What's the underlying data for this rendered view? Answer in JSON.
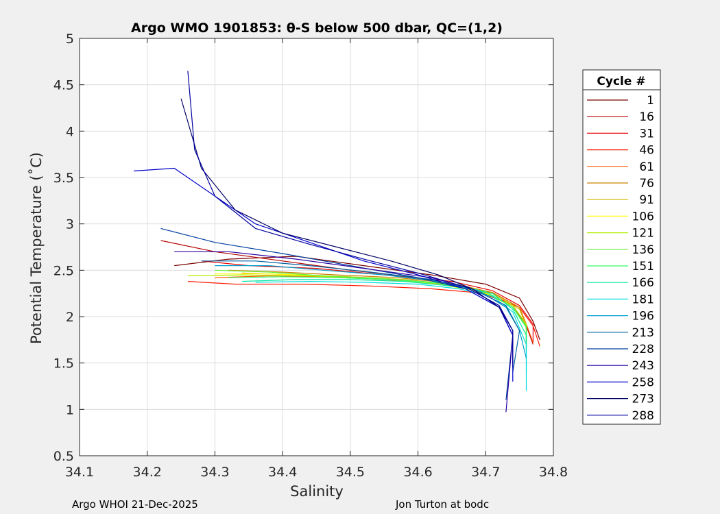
{
  "chart_data": {
    "type": "line",
    "title": "Argo WMO 1901853: θ-S below 500 dbar,  QC=(1,2)",
    "xlabel": "Salinity",
    "ylabel": "Potential Temperature (˚C)",
    "xlim": [
      34.1,
      34.8
    ],
    "ylim": [
      0.5,
      5
    ],
    "xticks": [
      "34.1",
      "34.2",
      "34.3",
      "34.4",
      "34.5",
      "34.6",
      "34.7",
      "34.8"
    ],
    "yticks": [
      "0.5",
      "1",
      "1.5",
      "2",
      "2.5",
      "3",
      "3.5",
      "4",
      "4.5",
      "5"
    ],
    "grid": true,
    "legend_title": "Cycle #",
    "legend_position": "right",
    "series": [
      {
        "name": "1",
        "color": "#7a0000",
        "x": [
          34.24,
          34.32,
          34.42,
          34.52,
          34.62,
          34.7,
          34.75,
          34.77,
          34.78
        ],
        "y": [
          2.55,
          2.62,
          2.65,
          2.55,
          2.45,
          2.35,
          2.2,
          1.95,
          1.75
        ]
      },
      {
        "name": "16",
        "color": "#b30000",
        "x": [
          34.22,
          34.3,
          34.4,
          34.5,
          34.6,
          34.68,
          34.74,
          34.76,
          34.77
        ],
        "y": [
          2.82,
          2.7,
          2.6,
          2.5,
          2.42,
          2.3,
          2.12,
          1.9,
          1.7
        ]
      },
      {
        "name": "31",
        "color": "#e60000",
        "x": [
          34.28,
          34.35,
          34.45,
          34.55,
          34.65,
          34.71,
          34.75,
          34.77,
          34.77
        ],
        "y": [
          2.6,
          2.55,
          2.52,
          2.45,
          2.38,
          2.28,
          2.12,
          1.92,
          1.72
        ]
      },
      {
        "name": "46",
        "color": "#ff1a00",
        "x": [
          34.26,
          34.33,
          34.43,
          34.53,
          34.62,
          34.7,
          34.75,
          34.77,
          34.78
        ],
        "y": [
          2.38,
          2.35,
          2.35,
          2.33,
          2.3,
          2.25,
          2.1,
          1.9,
          1.68
        ]
      },
      {
        "name": "61",
        "color": "#ff5500",
        "x": [
          34.3,
          34.38,
          34.46,
          34.55,
          34.64,
          34.71,
          34.75,
          34.76,
          34.77
        ],
        "y": [
          2.42,
          2.44,
          2.43,
          2.4,
          2.35,
          2.26,
          2.1,
          1.92,
          1.72
        ]
      },
      {
        "name": "76",
        "color": "#cc8000",
        "x": [
          34.32,
          34.4,
          34.48,
          34.57,
          34.65,
          34.71,
          34.75,
          34.76,
          34.76
        ],
        "y": [
          2.5,
          2.48,
          2.45,
          2.42,
          2.36,
          2.26,
          2.1,
          1.9,
          1.72
        ]
      },
      {
        "name": "91",
        "color": "#d7b800",
        "x": [
          34.34,
          34.42,
          34.5,
          34.58,
          34.66,
          34.71,
          34.75,
          34.76,
          34.76
        ],
        "y": [
          2.47,
          2.45,
          2.43,
          2.4,
          2.34,
          2.25,
          2.08,
          1.9,
          1.7
        ]
      },
      {
        "name": "106",
        "color": "#ffff00",
        "x": [
          34.3,
          34.38,
          34.46,
          34.55,
          34.63,
          34.7,
          34.74,
          34.76,
          34.76
        ],
        "y": [
          2.46,
          2.46,
          2.44,
          2.41,
          2.35,
          2.26,
          2.1,
          1.9,
          1.7
        ]
      },
      {
        "name": "121",
        "color": "#b3ee00",
        "x": [
          34.26,
          34.34,
          34.43,
          34.52,
          34.61,
          34.69,
          34.74,
          34.76,
          34.76
        ],
        "y": [
          2.44,
          2.45,
          2.44,
          2.42,
          2.37,
          2.28,
          2.12,
          1.92,
          1.72
        ]
      },
      {
        "name": "136",
        "color": "#66ee33",
        "x": [
          34.3,
          34.38,
          34.46,
          34.55,
          34.63,
          34.7,
          34.74,
          34.76,
          34.76
        ],
        "y": [
          2.5,
          2.48,
          2.44,
          2.41,
          2.36,
          2.27,
          2.1,
          1.9,
          1.65
        ]
      },
      {
        "name": "151",
        "color": "#33ff66",
        "x": [
          34.32,
          34.4,
          34.48,
          34.56,
          34.64,
          34.7,
          34.74,
          34.76,
          34.76
        ],
        "y": [
          2.42,
          2.43,
          2.42,
          2.4,
          2.36,
          2.27,
          2.1,
          1.88,
          1.62
        ]
      },
      {
        "name": "166",
        "color": "#00e6a0",
        "x": [
          34.34,
          34.42,
          34.5,
          34.58,
          34.65,
          34.71,
          34.74,
          34.76,
          34.76
        ],
        "y": [
          2.38,
          2.4,
          2.4,
          2.38,
          2.33,
          2.25,
          2.08,
          1.8,
          1.4
        ]
      },
      {
        "name": "181",
        "color": "#00dddd",
        "x": [
          34.36,
          34.44,
          34.52,
          34.6,
          34.66,
          34.71,
          34.74,
          34.76,
          34.76
        ],
        "y": [
          2.37,
          2.38,
          2.37,
          2.35,
          2.3,
          2.22,
          2.05,
          1.7,
          1.2
        ]
      },
      {
        "name": "196",
        "color": "#00a0d0",
        "x": [
          34.3,
          34.38,
          34.46,
          34.55,
          34.63,
          34.69,
          34.73,
          34.75,
          34.76
        ],
        "y": [
          2.55,
          2.55,
          2.5,
          2.45,
          2.38,
          2.28,
          2.1,
          1.85,
          1.55
        ]
      },
      {
        "name": "213",
        "color": "#0060a0",
        "x": [
          34.28,
          34.36,
          34.44,
          34.53,
          34.62,
          34.68,
          34.73,
          34.75,
          34.74
        ],
        "y": [
          2.6,
          2.6,
          2.55,
          2.48,
          2.4,
          2.3,
          2.12,
          1.85,
          1.4
        ]
      },
      {
        "name": "228",
        "color": "#003fa0",
        "x": [
          34.22,
          34.3,
          34.4,
          34.5,
          34.6,
          34.67,
          34.72,
          34.74,
          34.73
        ],
        "y": [
          2.95,
          2.8,
          2.68,
          2.55,
          2.42,
          2.3,
          2.1,
          1.8,
          1.1
        ]
      },
      {
        "name": "243",
        "color": "#2a00a0",
        "x": [
          34.24,
          34.32,
          34.42,
          34.52,
          34.62,
          34.68,
          34.72,
          34.74,
          34.73
        ],
        "y": [
          2.7,
          2.7,
          2.62,
          2.52,
          2.42,
          2.3,
          2.1,
          1.8,
          0.97
        ]
      },
      {
        "name": "258",
        "color": "#0000cc",
        "x": [
          34.18,
          34.24,
          34.3,
          34.36,
          34.44,
          34.52,
          34.6,
          34.67,
          34.72,
          34.74,
          34.74
        ],
        "y": [
          3.57,
          3.6,
          3.3,
          3.0,
          2.8,
          2.6,
          2.45,
          2.3,
          2.1,
          1.8,
          1.3
        ]
      },
      {
        "name": "273",
        "color": "#000066",
        "x": [
          34.25,
          34.28,
          34.33,
          34.4,
          34.48,
          34.56,
          34.63,
          34.68,
          34.72,
          34.74,
          34.74
        ],
        "y": [
          4.35,
          3.6,
          3.15,
          2.9,
          2.75,
          2.6,
          2.45,
          2.3,
          2.1,
          1.85,
          1.5
        ]
      },
      {
        "name": "288",
        "color": "#0000a0",
        "x": [
          34.26,
          34.27,
          34.3,
          34.36,
          34.44,
          34.52,
          34.6,
          34.67,
          34.72,
          34.74,
          34.74
        ],
        "y": [
          4.65,
          3.8,
          3.3,
          2.95,
          2.78,
          2.62,
          2.47,
          2.32,
          2.12,
          1.85,
          1.45
        ]
      }
    ]
  },
  "footer": {
    "left": "Argo WHOI 21-Dec-2025",
    "right": "Jon Turton at bodc"
  }
}
